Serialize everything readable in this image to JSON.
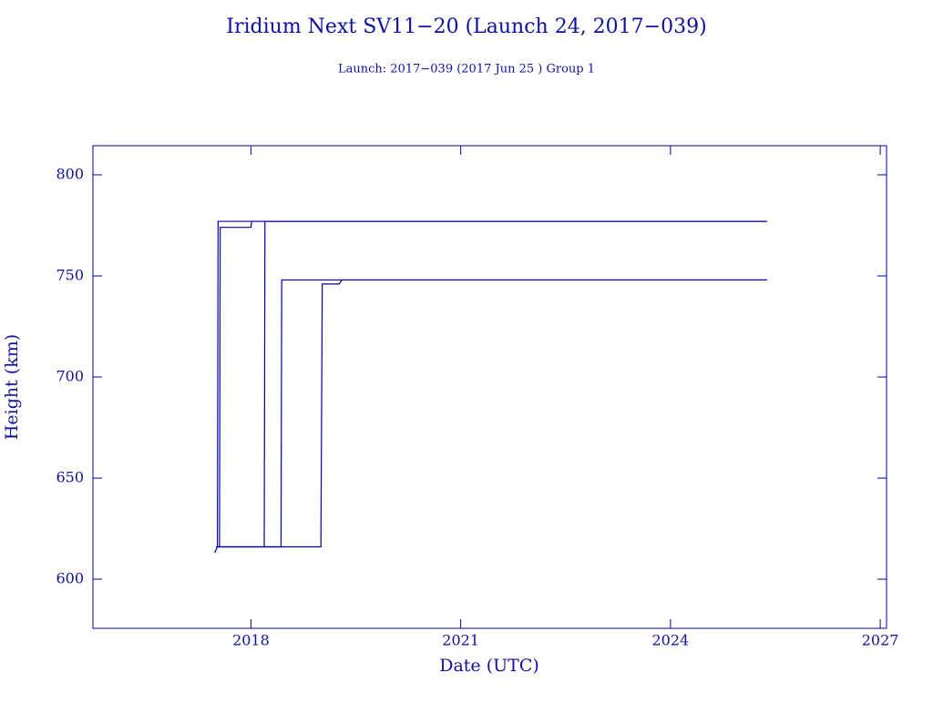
{
  "chart_data": {
    "type": "line",
    "title": "Iridium Next SV11−20 (Launch 24, 2017−039)",
    "subtitle": "Launch: 2017−039  (2017 Jun 25 )  Group 1",
    "x_label": "Date (UTC)",
    "y_label": "Height (km)",
    "xlim": [
      2015.74,
      2027.09
    ],
    "ylim": [
      575.7,
      814.4
    ],
    "xticks": [
      2018,
      2021,
      2024,
      2027
    ],
    "yticks": [
      600,
      650,
      700,
      750,
      800
    ],
    "color": "#0000a0",
    "series": [
      {
        "x": [
          2017.48,
          2017.52,
          2017.53,
          2025.38
        ],
        "values": [
          613,
          616,
          777,
          777
        ]
      },
      {
        "x": [
          2017.5,
          2017.55,
          2017.56,
          2018.0,
          2018.01,
          2025.38
        ],
        "values": [
          616,
          616,
          774,
          774,
          777,
          777
        ]
      },
      {
        "x": [
          2017.55,
          2018.19,
          2018.2,
          2025.38
        ],
        "values": [
          616,
          616,
          777,
          777
        ]
      },
      {
        "x": [
          2017.55,
          2018.43,
          2018.44,
          2025.38
        ],
        "values": [
          616,
          616,
          748,
          748
        ]
      },
      {
        "x": [
          2018.2,
          2019.0,
          2019.02,
          2019.26,
          2019.3,
          2025.38
        ],
        "values": [
          616,
          616,
          746,
          746,
          748,
          748
        ]
      }
    ]
  }
}
